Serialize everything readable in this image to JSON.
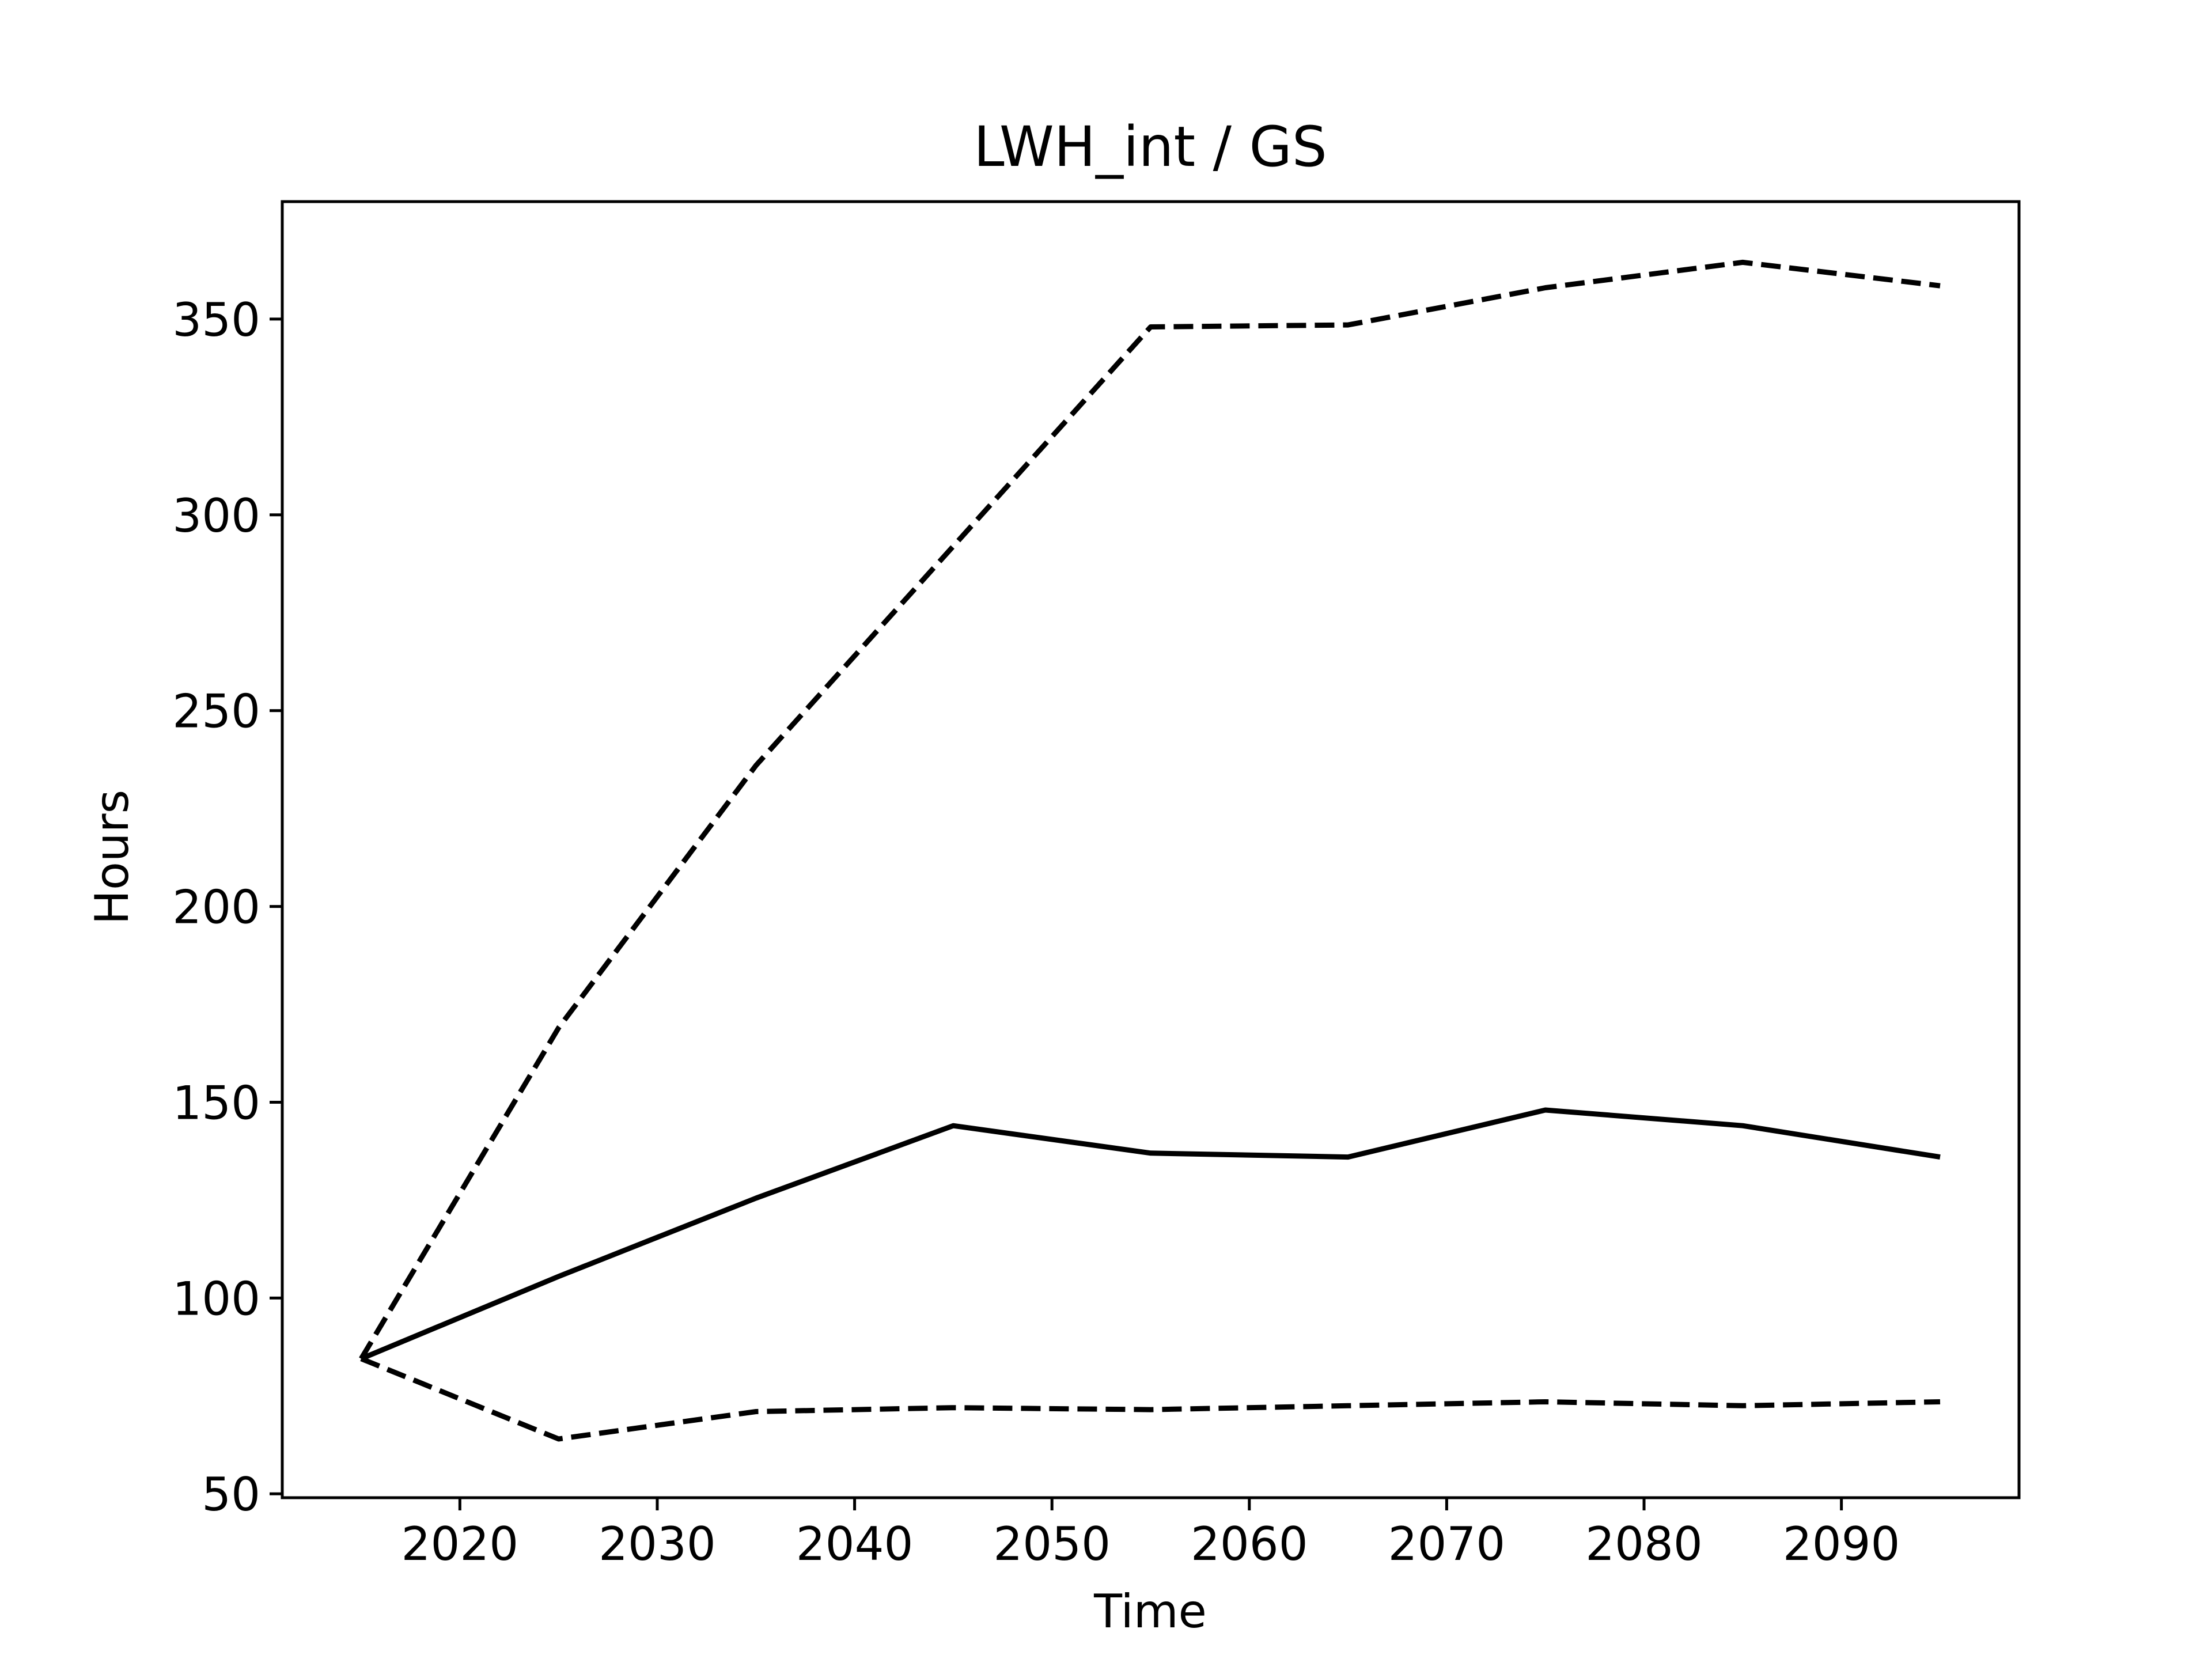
{
  "chart_data": {
    "type": "line",
    "title": "LWH_int / GS",
    "xlabel": "Time",
    "ylabel": "Hours",
    "xlim": [
      2011,
      2099
    ],
    "ylim": [
      49,
      380
    ],
    "xticks": [
      2020,
      2030,
      2040,
      2050,
      2060,
      2070,
      2080,
      2090
    ],
    "yticks": [
      50,
      100,
      150,
      200,
      250,
      300,
      350
    ],
    "x": [
      2015,
      2025,
      2035,
      2045,
      2055,
      2065,
      2075,
      2085,
      2095
    ],
    "series": [
      {
        "style": "solid",
        "color": "#000000",
        "values": [
          84.5,
          105.5,
          125.5,
          144,
          137,
          136,
          148,
          144,
          136
        ]
      },
      {
        "style": "dashed",
        "color": "#000000",
        "values": [
          84.5,
          169,
          236,
          292,
          348,
          348.5,
          358,
          364.5,
          358.5
        ]
      },
      {
        "style": "dashed",
        "color": "#000000",
        "values": [
          84.5,
          64,
          71,
          72,
          71.5,
          72.5,
          73.5,
          72.5,
          73.5
        ]
      }
    ],
    "grid": false,
    "legend": "none"
  }
}
